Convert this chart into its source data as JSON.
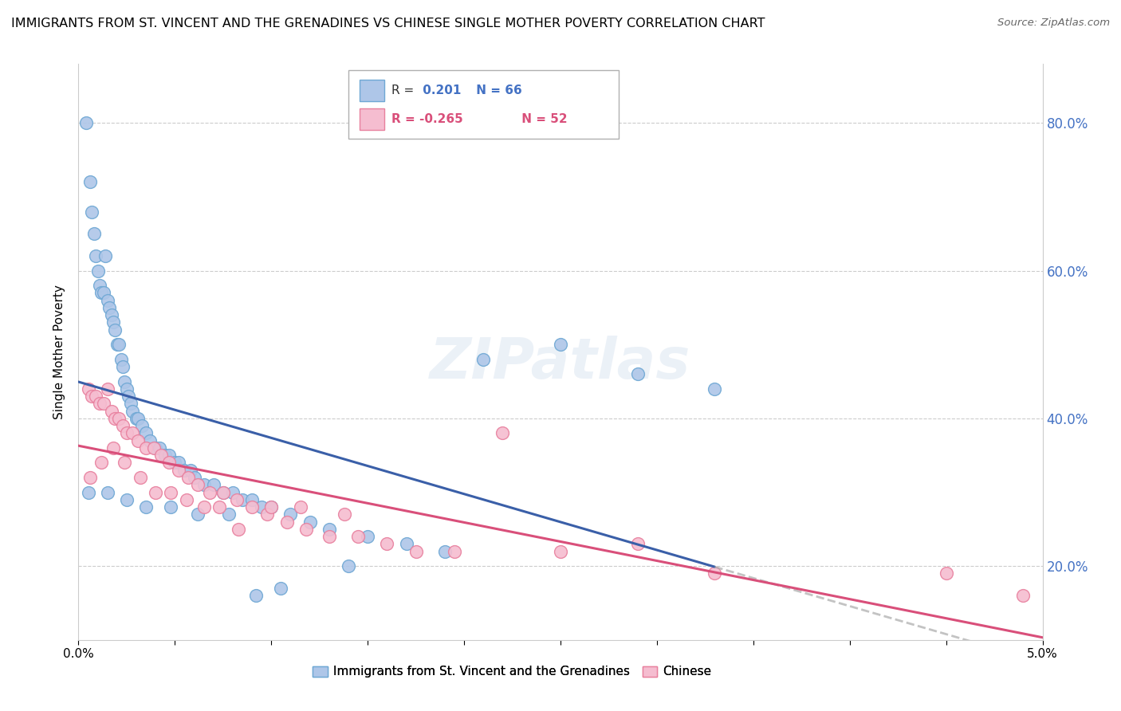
{
  "title": "IMMIGRANTS FROM ST. VINCENT AND THE GRENADINES VS CHINESE SINGLE MOTHER POVERTY CORRELATION CHART",
  "source": "Source: ZipAtlas.com",
  "ylabel": "Single Mother Poverty",
  "series1_color": "#aec6e8",
  "series1_edge": "#6fa8d4",
  "series2_color": "#f5bdd0",
  "series2_edge": "#e8809e",
  "line1_color": "#3a5fa8",
  "line2_color": "#d94f7a",
  "watermark": "ZIPatlas",
  "R1": 0.201,
  "N1": 66,
  "R2": -0.265,
  "N2": 52,
  "xlim": [
    0.0,
    5.0
  ],
  "ylim": [
    10.0,
    88.0
  ],
  "yticks": [
    20.0,
    40.0,
    60.0,
    80.0
  ],
  "right_axis_color": "#4472c4",
  "blue_x": [
    0.04,
    0.06,
    0.07,
    0.08,
    0.09,
    0.1,
    0.11,
    0.12,
    0.13,
    0.14,
    0.15,
    0.16,
    0.17,
    0.18,
    0.19,
    0.2,
    0.21,
    0.22,
    0.23,
    0.24,
    0.25,
    0.26,
    0.27,
    0.28,
    0.3,
    0.31,
    0.33,
    0.35,
    0.37,
    0.4,
    0.42,
    0.45,
    0.47,
    0.5,
    0.52,
    0.55,
    0.58,
    0.6,
    0.65,
    0.7,
    0.75,
    0.8,
    0.85,
    0.9,
    0.95,
    1.0,
    1.1,
    1.2,
    1.3,
    1.5,
    1.7,
    1.9,
    2.1,
    2.5,
    2.9,
    3.3,
    0.05,
    0.15,
    0.25,
    0.35,
    0.48,
    0.62,
    0.78,
    0.92,
    1.05,
    1.4
  ],
  "blue_y": [
    80.0,
    72.0,
    68.0,
    65.0,
    62.0,
    60.0,
    58.0,
    57.0,
    57.0,
    62.0,
    56.0,
    55.0,
    54.0,
    53.0,
    52.0,
    50.0,
    50.0,
    48.0,
    47.0,
    45.0,
    44.0,
    43.0,
    42.0,
    41.0,
    40.0,
    40.0,
    39.0,
    38.0,
    37.0,
    36.0,
    36.0,
    35.0,
    35.0,
    34.0,
    34.0,
    33.0,
    33.0,
    32.0,
    31.0,
    31.0,
    30.0,
    30.0,
    29.0,
    29.0,
    28.0,
    28.0,
    27.0,
    26.0,
    25.0,
    24.0,
    23.0,
    22.0,
    48.0,
    50.0,
    46.0,
    44.0,
    30.0,
    30.0,
    29.0,
    28.0,
    28.0,
    27.0,
    27.0,
    16.0,
    17.0,
    20.0
  ],
  "pink_x": [
    0.05,
    0.07,
    0.09,
    0.11,
    0.13,
    0.15,
    0.17,
    0.19,
    0.21,
    0.23,
    0.25,
    0.28,
    0.31,
    0.35,
    0.39,
    0.43,
    0.47,
    0.52,
    0.57,
    0.62,
    0.68,
    0.75,
    0.82,
    0.9,
    0.98,
    1.08,
    1.18,
    1.3,
    1.45,
    1.6,
    1.75,
    1.95,
    2.2,
    2.5,
    2.9,
    3.3,
    4.5,
    0.06,
    0.12,
    0.18,
    0.24,
    0.32,
    0.4,
    0.48,
    0.56,
    0.65,
    0.73,
    0.83,
    1.0,
    1.15,
    1.38,
    4.9
  ],
  "pink_y": [
    44.0,
    43.0,
    43.0,
    42.0,
    42.0,
    44.0,
    41.0,
    40.0,
    40.0,
    39.0,
    38.0,
    38.0,
    37.0,
    36.0,
    36.0,
    35.0,
    34.0,
    33.0,
    32.0,
    31.0,
    30.0,
    30.0,
    29.0,
    28.0,
    27.0,
    26.0,
    25.0,
    24.0,
    24.0,
    23.0,
    22.0,
    22.0,
    38.0,
    22.0,
    23.0,
    19.0,
    19.0,
    32.0,
    34.0,
    36.0,
    34.0,
    32.0,
    30.0,
    30.0,
    29.0,
    28.0,
    28.0,
    25.0,
    28.0,
    28.0,
    27.0,
    16.0
  ]
}
